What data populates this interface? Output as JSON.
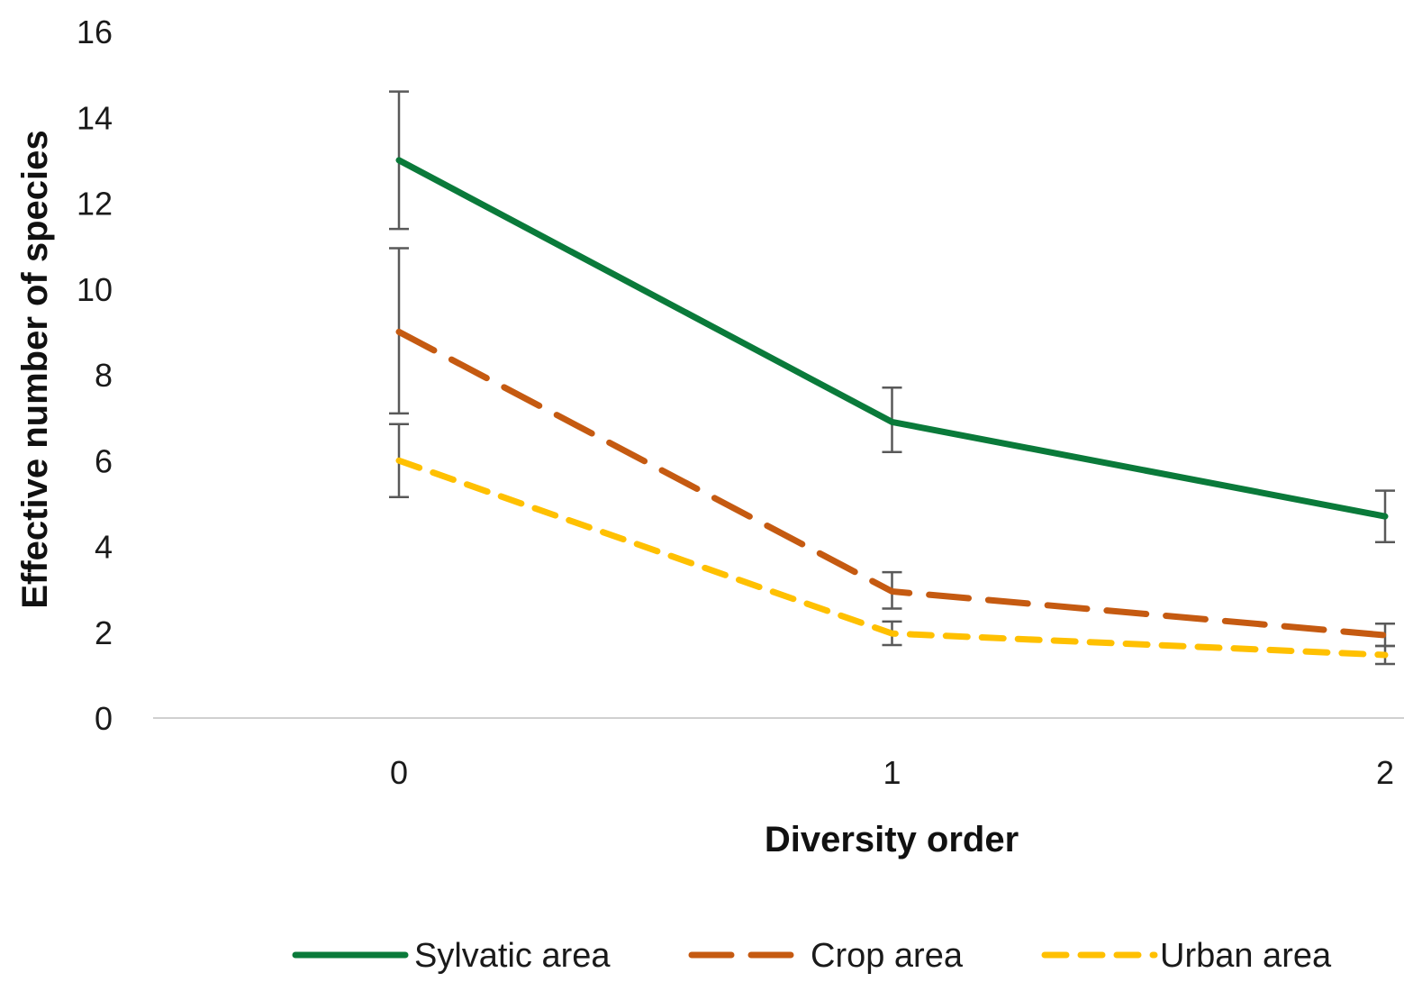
{
  "chart_data": {
    "type": "line",
    "title": "",
    "xlabel": "Diversity order",
    "ylabel": "Effective number of species",
    "x": [
      0,
      1,
      2
    ],
    "x_tick_labels": [
      "0",
      "1",
      "2"
    ],
    "ylim": [
      0,
      16
    ],
    "y_ticks": [
      0,
      2,
      4,
      6,
      8,
      10,
      12,
      14,
      16
    ],
    "y_tick_labels": [
      "0",
      "2",
      "4",
      "6",
      "8",
      "10",
      "12",
      "14",
      "16"
    ],
    "grid": false,
    "legend_position": "bottom",
    "series": [
      {
        "name": "Sylvatic area",
        "color": "#0a7a3a",
        "dash": "solid",
        "values": [
          13.0,
          6.9,
          4.7
        ],
        "error_low": [
          11.4,
          6.2,
          4.1
        ],
        "error_high": [
          14.6,
          7.7,
          5.3
        ]
      },
      {
        "name": "Crop area",
        "color": "#c55a11",
        "dash": "long-dash",
        "values": [
          9.0,
          2.95,
          1.93
        ],
        "error_low": [
          7.1,
          2.55,
          1.68
        ],
        "error_high": [
          10.95,
          3.4,
          2.2
        ]
      },
      {
        "name": "Urban area",
        "color": "#ffc000",
        "dash": "short-dash",
        "values": [
          6.0,
          1.97,
          1.47
        ],
        "error_low": [
          5.15,
          1.7,
          1.26
        ],
        "error_high": [
          6.85,
          2.25,
          1.68
        ]
      }
    ]
  }
}
